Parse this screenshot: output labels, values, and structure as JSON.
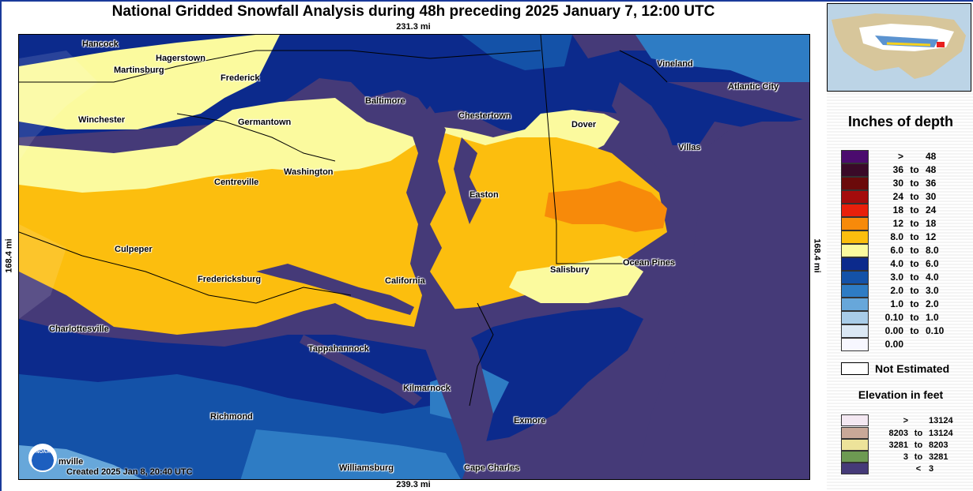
{
  "title": "National Gridded Snowfall Analysis during 48h preceding 2025 January 7, 12:00 UTC",
  "scale": {
    "top": "231.3 mi",
    "bottom": "239.3 mi",
    "left": "168.4 mi",
    "right": "168.4 mi"
  },
  "credit": "Created 2025 Jan 8, 20:40 UTC",
  "logo_text": "NOAA",
  "cities": [
    {
      "name": "Hancock"
    },
    {
      "name": "Hagerstown"
    },
    {
      "name": "Martinsburg"
    },
    {
      "name": "Frederick"
    },
    {
      "name": "Baltimore"
    },
    {
      "name": "Vineland"
    },
    {
      "name": "Atlantic City"
    },
    {
      "name": "Winchester"
    },
    {
      "name": "Germantown"
    },
    {
      "name": "Chestertown"
    },
    {
      "name": "Dover"
    },
    {
      "name": "Villas"
    },
    {
      "name": "Washington"
    },
    {
      "name": "Centreville"
    },
    {
      "name": "Easton"
    },
    {
      "name": "Culpeper"
    },
    {
      "name": "Ocean Pines"
    },
    {
      "name": "Salisbury"
    },
    {
      "name": "Fredericksburg"
    },
    {
      "name": "California"
    },
    {
      "name": "Charlottesville"
    },
    {
      "name": "Tappahannock"
    },
    {
      "name": "Kilmarnock"
    },
    {
      "name": "Richmond"
    },
    {
      "name": "Exmore"
    },
    {
      "name": "mville"
    },
    {
      "name": "Williamsburg"
    },
    {
      "name": "Cape Charles"
    }
  ],
  "legend": {
    "title": "Inches of depth",
    "to_word": "to",
    "rows": [
      {
        "a": ">",
        "b": "48",
        "color": "#4b0b6e"
      },
      {
        "a": "36",
        "b": "48",
        "color": "#3a0a28"
      },
      {
        "a": "30",
        "b": "36",
        "color": "#6b0a0a"
      },
      {
        "a": "24",
        "b": "30",
        "color": "#a40c0c"
      },
      {
        "a": "18",
        "b": "24",
        "color": "#e8200b"
      },
      {
        "a": "12",
        "b": "18",
        "color": "#f78a0a"
      },
      {
        "a": "8.0",
        "b": "12",
        "color": "#fcbe0e"
      },
      {
        "a": "6.0",
        "b": "8.0",
        "color": "#fbfa9e"
      },
      {
        "a": "4.0",
        "b": "6.0",
        "color": "#0c2a8c"
      },
      {
        "a": "3.0",
        "b": "4.0",
        "color": "#1452a8"
      },
      {
        "a": "2.0",
        "b": "3.0",
        "color": "#2e7cc4"
      },
      {
        "a": "1.0",
        "b": "2.0",
        "color": "#67a7da"
      },
      {
        "a": "0.10",
        "b": "1.0",
        "color": "#a8cce8"
      },
      {
        "a": "0.00",
        "b": "0.10",
        "color": "#dbe8f4"
      },
      {
        "a": "0.00",
        "b": "",
        "color": "#f7f7ff"
      }
    ],
    "not_estimated": "Not Estimated"
  },
  "elevation": {
    "title": "Elevation in feet",
    "to_word": "to",
    "rows": [
      {
        "a": ">",
        "b": "13124",
        "color": "#f4e8f2"
      },
      {
        "a": "8203",
        "b": "13124",
        "color": "#c9a898"
      },
      {
        "a": "3281",
        "b": "8203",
        "color": "#ede39a"
      },
      {
        "a": "3",
        "b": "3281",
        "color": "#6d9a52"
      },
      {
        "a": "<",
        "b": "3",
        "color": "#453a78"
      }
    ]
  }
}
